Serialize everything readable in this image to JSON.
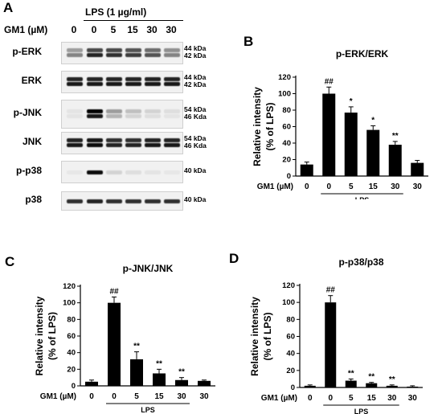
{
  "panel_letters": {
    "a": "A",
    "b": "B",
    "c": "C",
    "d": "D"
  },
  "western": {
    "treatment_label": "LPS (1 µg/ml)",
    "dose_row_label": "GM1 (µM)",
    "lanes": [
      "0",
      "0",
      "5",
      "15",
      "30",
      "30"
    ],
    "blots": [
      {
        "label": "p-ERK",
        "kda": [
          "44 kDa",
          "42 kDa"
        ],
        "intensity": [
          [
            0.35,
            0.7,
            0.7,
            0.65,
            0.55,
            0.4
          ],
          [
            0.45,
            0.85,
            0.8,
            0.75,
            0.65,
            0.45
          ]
        ]
      },
      {
        "label": "ERK",
        "kda": [
          "44 kDa",
          "42 kDa"
        ],
        "intensity": [
          [
            0.85,
            0.85,
            0.85,
            0.85,
            0.85,
            0.85
          ],
          [
            0.9,
            0.9,
            0.9,
            0.9,
            0.9,
            0.9
          ]
        ]
      },
      {
        "label": "p-JNK",
        "kda": [
          "54 kDa",
          "46 Kda"
        ],
        "intensity": [
          [
            0.05,
            1.0,
            0.35,
            0.2,
            0.12,
            0.08
          ],
          [
            0.05,
            0.9,
            0.25,
            0.12,
            0.08,
            0.05
          ]
        ]
      },
      {
        "label": "JNK",
        "kda": [
          "54 kDa",
          "46 Kda"
        ],
        "intensity": [
          [
            0.85,
            0.9,
            0.8,
            0.8,
            0.85,
            0.85
          ],
          [
            0.9,
            0.95,
            0.85,
            0.85,
            0.9,
            0.9
          ]
        ]
      },
      {
        "label": "p-p38",
        "kda": [
          "40 kDa"
        ],
        "intensity": [
          [
            0.04,
            0.95,
            0.12,
            0.08,
            0.05,
            0.04
          ]
        ]
      },
      {
        "label": "p38",
        "kda": [
          "40 kDa"
        ],
        "intensity": [
          [
            0.8,
            0.85,
            0.8,
            0.8,
            0.8,
            0.8
          ]
        ]
      }
    ]
  },
  "chart_data": [
    {
      "panel": "B",
      "type": "bar",
      "title": "p-ERK/ERK",
      "ylabel": [
        "Relative intensity",
        "(% of LPS)"
      ],
      "xlabel_prefix": "GM1 (µM)",
      "group_label": "LPS",
      "categories": [
        "0",
        "0",
        "5",
        "15",
        "30",
        "30"
      ],
      "values": [
        14,
        100,
        77,
        56,
        38,
        16
      ],
      "errors": [
        3,
        8,
        7,
        5,
        4,
        3
      ],
      "annotations": [
        "",
        "##",
        "*",
        "*",
        "**",
        ""
      ],
      "yticks": [
        0,
        20,
        40,
        60,
        80,
        100,
        120
      ],
      "ylim": [
        0,
        120
      ],
      "bar_color": "#000000"
    },
    {
      "panel": "C",
      "type": "bar",
      "title": "p-JNK/JNK",
      "ylabel": [
        "Relative intensity",
        "(% of LPS)"
      ],
      "xlabel_prefix": "GM1 (µM)",
      "group_label": "LPS",
      "categories": [
        "0",
        "0",
        "5",
        "15",
        "30",
        "30"
      ],
      "values": [
        5,
        100,
        32,
        15,
        7,
        6
      ],
      "errors": [
        2,
        7,
        9,
        5,
        3,
        1
      ],
      "annotations": [
        "",
        "##",
        "**",
        "**",
        "**",
        ""
      ],
      "yticks": [
        0,
        20,
        40,
        60,
        80,
        100,
        120
      ],
      "ylim": [
        0,
        120
      ],
      "bar_color": "#000000"
    },
    {
      "panel": "D",
      "type": "bar",
      "title": "p-p38/p38",
      "ylabel": [
        "Relative intensity",
        "(% of LPS)"
      ],
      "xlabel_prefix": "GM1 (µM)",
      "group_label": "LPS",
      "categories": [
        "0",
        "0",
        "5",
        "15",
        "30",
        "30"
      ],
      "values": [
        2,
        100,
        8,
        5,
        2,
        1
      ],
      "errors": [
        1,
        8,
        2,
        1,
        1,
        1
      ],
      "annotations": [
        "",
        "##",
        "**",
        "**",
        "**",
        ""
      ],
      "yticks": [
        0,
        20,
        40,
        60,
        80,
        100,
        120
      ],
      "ylim": [
        0,
        120
      ],
      "bar_color": "#000000"
    }
  ]
}
